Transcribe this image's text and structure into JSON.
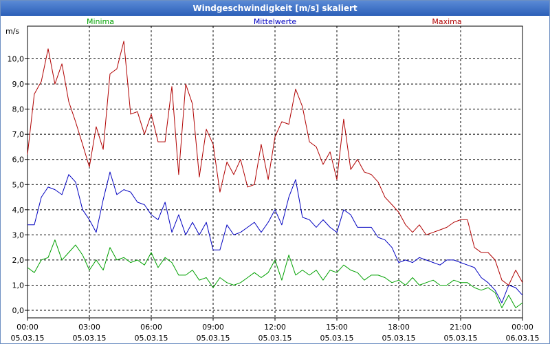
{
  "window": {
    "title": "Windgeschwindigkeit [m/s] skaliert"
  },
  "chart_data": {
    "type": "line",
    "title": "Windgeschwindigkeit [m/s] skaliert",
    "ylabel": "m/s",
    "ylim": [
      -0.3,
      11.3
    ],
    "xlim": [
      0,
      24
    ],
    "grid": true,
    "yticks": [
      0,
      1,
      2,
      3,
      4,
      5,
      6,
      7,
      8,
      9,
      10
    ],
    "ytick_labels": [
      "0,0",
      "1,0",
      "2,0",
      "3,0",
      "4,0",
      "5,0",
      "6,0",
      "7,0",
      "8,0",
      "9,0",
      "10,0"
    ],
    "xticks": [
      0,
      3,
      6,
      9,
      12,
      15,
      18,
      21,
      24
    ],
    "xtick_labels": [
      {
        "time": "00:00",
        "date": "05.03.15"
      },
      {
        "time": "03:00",
        "date": "05.03.15"
      },
      {
        "time": "06:00",
        "date": "05.03.15"
      },
      {
        "time": "09:00",
        "date": "05.03.15"
      },
      {
        "time": "12:00",
        "date": "05.03.15"
      },
      {
        "time": "15:00",
        "date": "05.03.15"
      },
      {
        "time": "18:00",
        "date": "05.03.15"
      },
      {
        "time": "21:00",
        "date": "05.03.15"
      },
      {
        "time": "00:00",
        "date": "06.03.15"
      }
    ],
    "series": [
      {
        "name": "Minima",
        "color": "#00a000",
        "x": [
          0,
          0.33,
          0.67,
          1,
          1.33,
          1.67,
          2,
          2.33,
          2.67,
          3,
          3.33,
          3.67,
          4,
          4.33,
          4.67,
          5,
          5.33,
          5.67,
          6,
          6.33,
          6.67,
          7,
          7.33,
          7.67,
          8,
          8.33,
          8.67,
          9,
          9.33,
          9.67,
          10,
          10.33,
          10.67,
          11,
          11.33,
          11.67,
          12,
          12.33,
          12.67,
          13,
          13.33,
          13.67,
          14,
          14.33,
          14.67,
          15,
          15.33,
          15.67,
          16,
          16.33,
          16.67,
          17,
          17.33,
          17.67,
          18,
          18.33,
          18.67,
          19,
          19.33,
          19.67,
          20,
          20.33,
          20.67,
          21,
          21.33,
          21.67,
          22,
          22.33,
          22.67,
          23,
          23.33,
          23.67,
          24
        ],
        "y": [
          1.7,
          1.5,
          2.0,
          2.1,
          2.8,
          2.0,
          2.3,
          2.6,
          2.2,
          1.6,
          2.0,
          1.6,
          2.5,
          2.0,
          2.1,
          1.9,
          2.0,
          1.8,
          2.3,
          1.7,
          2.1,
          1.9,
          1.4,
          1.4,
          1.6,
          1.2,
          1.3,
          0.9,
          1.3,
          1.1,
          1.0,
          1.1,
          1.3,
          1.5,
          1.3,
          1.5,
          2.0,
          1.2,
          2.2,
          1.4,
          1.6,
          1.4,
          1.6,
          1.2,
          1.6,
          1.5,
          1.8,
          1.6,
          1.5,
          1.2,
          1.4,
          1.4,
          1.3,
          1.1,
          1.2,
          1.0,
          1.3,
          1.0,
          1.1,
          1.2,
          1.0,
          1.0,
          1.2,
          1.1,
          1.1,
          0.9,
          0.8,
          0.9,
          0.7,
          0.1,
          0.6,
          0.1,
          0.3
        ]
      },
      {
        "name": "Mittelwerte",
        "color": "#0000c0",
        "x": [
          0,
          0.33,
          0.67,
          1,
          1.33,
          1.67,
          2,
          2.33,
          2.67,
          3,
          3.33,
          3.67,
          4,
          4.33,
          4.67,
          5,
          5.33,
          5.67,
          6,
          6.33,
          6.67,
          7,
          7.33,
          7.67,
          8,
          8.33,
          8.67,
          9,
          9.33,
          9.67,
          10,
          10.33,
          10.67,
          11,
          11.33,
          11.67,
          12,
          12.33,
          12.67,
          13,
          13.33,
          13.67,
          14,
          14.33,
          14.67,
          15,
          15.33,
          15.67,
          16,
          16.33,
          16.67,
          17,
          17.33,
          17.67,
          18,
          18.33,
          18.67,
          19,
          19.33,
          19.67,
          20,
          20.33,
          20.67,
          21,
          21.33,
          21.67,
          22,
          22.33,
          22.67,
          23,
          23.33,
          23.67,
          24
        ],
        "y": [
          3.4,
          3.4,
          4.5,
          4.9,
          4.8,
          4.6,
          5.4,
          5.1,
          4.0,
          3.6,
          3.1,
          4.4,
          5.5,
          4.6,
          4.8,
          4.7,
          4.3,
          4.2,
          3.8,
          3.6,
          4.3,
          3.1,
          3.8,
          3.0,
          3.5,
          3.0,
          3.5,
          2.4,
          2.4,
          3.4,
          3.0,
          3.1,
          3.3,
          3.5,
          3.1,
          3.5,
          4.0,
          3.4,
          4.5,
          5.2,
          3.7,
          3.6,
          3.3,
          3.6,
          3.3,
          3.1,
          4.0,
          3.8,
          3.3,
          3.3,
          3.3,
          2.9,
          2.8,
          2.5,
          1.9,
          2.0,
          1.9,
          2.1,
          2.0,
          1.9,
          1.8,
          2.0,
          2.0,
          1.9,
          1.8,
          1.7,
          1.3,
          1.1,
          0.8,
          0.3,
          1.0,
          0.9,
          0.6
        ]
      },
      {
        "name": "Maxima",
        "color": "#b00000",
        "x": [
          0,
          0.33,
          0.67,
          1,
          1.33,
          1.67,
          2,
          2.33,
          2.67,
          3,
          3.33,
          3.67,
          4,
          4.33,
          4.67,
          5,
          5.33,
          5.67,
          6,
          6.33,
          6.67,
          7,
          7.33,
          7.67,
          8,
          8.33,
          8.67,
          9,
          9.33,
          9.67,
          10,
          10.33,
          10.67,
          11,
          11.33,
          11.67,
          12,
          12.33,
          12.67,
          13,
          13.33,
          13.67,
          14,
          14.33,
          14.67,
          15,
          15.33,
          15.67,
          16,
          16.33,
          16.67,
          17,
          17.33,
          17.67,
          18,
          18.33,
          18.67,
          19,
          19.33,
          19.67,
          20,
          20.33,
          20.67,
          21,
          21.33,
          21.67,
          22,
          22.33,
          22.67,
          23,
          23.33,
          23.67,
          24
        ],
        "y": [
          6.2,
          8.6,
          9.1,
          10.4,
          9.0,
          9.8,
          8.3,
          7.5,
          6.6,
          5.7,
          7.3,
          6.4,
          9.4,
          9.6,
          10.7,
          7.8,
          7.9,
          7.0,
          7.8,
          6.7,
          6.7,
          8.9,
          5.4,
          9.0,
          8.2,
          5.3,
          7.2,
          6.6,
          4.7,
          5.9,
          5.4,
          6.0,
          4.9,
          5.0,
          6.6,
          5.2,
          6.9,
          7.5,
          7.4,
          8.8,
          8.1,
          6.7,
          6.5,
          5.8,
          6.3,
          5.2,
          7.6,
          5.6,
          6.0,
          5.5,
          5.4,
          5.1,
          4.5,
          4.2,
          3.9,
          3.4,
          3.1,
          3.4,
          3.0,
          3.1,
          3.2,
          3.3,
          3.5,
          3.6,
          3.6,
          2.5,
          2.3,
          2.3,
          2.0,
          1.2,
          1.0,
          1.6,
          1.1
        ]
      }
    ]
  }
}
